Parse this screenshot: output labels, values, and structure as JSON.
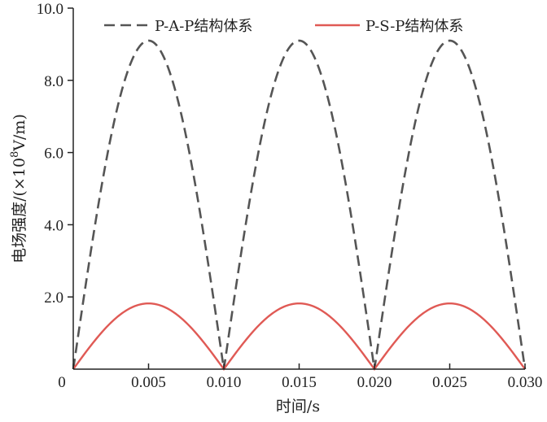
{
  "chart_data": {
    "type": "line",
    "xlabel": "时间/s",
    "ylabel_prefix": "电场强度/(×10",
    "ylabel_exp": "8",
    "ylabel_suffix": "V/m)",
    "xlim": [
      0,
      0.03
    ],
    "ylim": [
      0,
      10
    ],
    "x_ticks": [
      0,
      0.005,
      0.01,
      0.015,
      0.02,
      0.025,
      0.03
    ],
    "x_tick_labels": [
      "0",
      "0.005",
      "0.010",
      "0.015",
      "0.020",
      "0.025",
      "0.030"
    ],
    "y_ticks": [
      2,
      4,
      6,
      8,
      10
    ],
    "y_tick_labels": [
      "2.0",
      "4.0",
      "6.0",
      "8.0",
      "10.0"
    ],
    "grid": false,
    "legend_position": "top",
    "series": [
      {
        "name": "P-A-P结构体系",
        "style": "dashed",
        "color": "#555555",
        "peak": 9.1,
        "x": [
          0,
          0.001,
          0.002,
          0.003,
          0.004,
          0.005,
          0.006,
          0.007,
          0.008,
          0.009,
          0.01,
          0.011,
          0.012,
          0.013,
          0.014,
          0.015,
          0.016,
          0.017,
          0.018,
          0.019,
          0.02,
          0.021,
          0.022,
          0.023,
          0.024,
          0.025,
          0.026,
          0.027,
          0.028,
          0.029,
          0.03
        ],
        "values": [
          0,
          2.81,
          5.35,
          7.36,
          8.65,
          9.1,
          8.65,
          7.36,
          5.35,
          2.81,
          0,
          2.81,
          5.35,
          7.36,
          8.65,
          9.1,
          8.65,
          7.36,
          5.35,
          2.81,
          0,
          2.81,
          5.35,
          7.36,
          8.65,
          9.1,
          8.65,
          7.36,
          5.35,
          2.81,
          0
        ]
      },
      {
        "name": "P-S-P结构体系",
        "style": "solid",
        "color": "#e05a55",
        "peak": 1.82,
        "x": [
          0,
          0.001,
          0.002,
          0.003,
          0.004,
          0.005,
          0.006,
          0.007,
          0.008,
          0.009,
          0.01,
          0.011,
          0.012,
          0.013,
          0.014,
          0.015,
          0.016,
          0.017,
          0.018,
          0.019,
          0.02,
          0.021,
          0.022,
          0.023,
          0.024,
          0.025,
          0.026,
          0.027,
          0.028,
          0.029,
          0.03
        ],
        "values": [
          0,
          0.56,
          1.07,
          1.47,
          1.73,
          1.82,
          1.73,
          1.47,
          1.07,
          0.56,
          0,
          0.56,
          1.07,
          1.47,
          1.73,
          1.82,
          1.73,
          1.47,
          1.07,
          0.56,
          0,
          0.56,
          1.07,
          1.47,
          1.73,
          1.82,
          1.73,
          1.47,
          1.07,
          0.56,
          0
        ]
      }
    ]
  }
}
